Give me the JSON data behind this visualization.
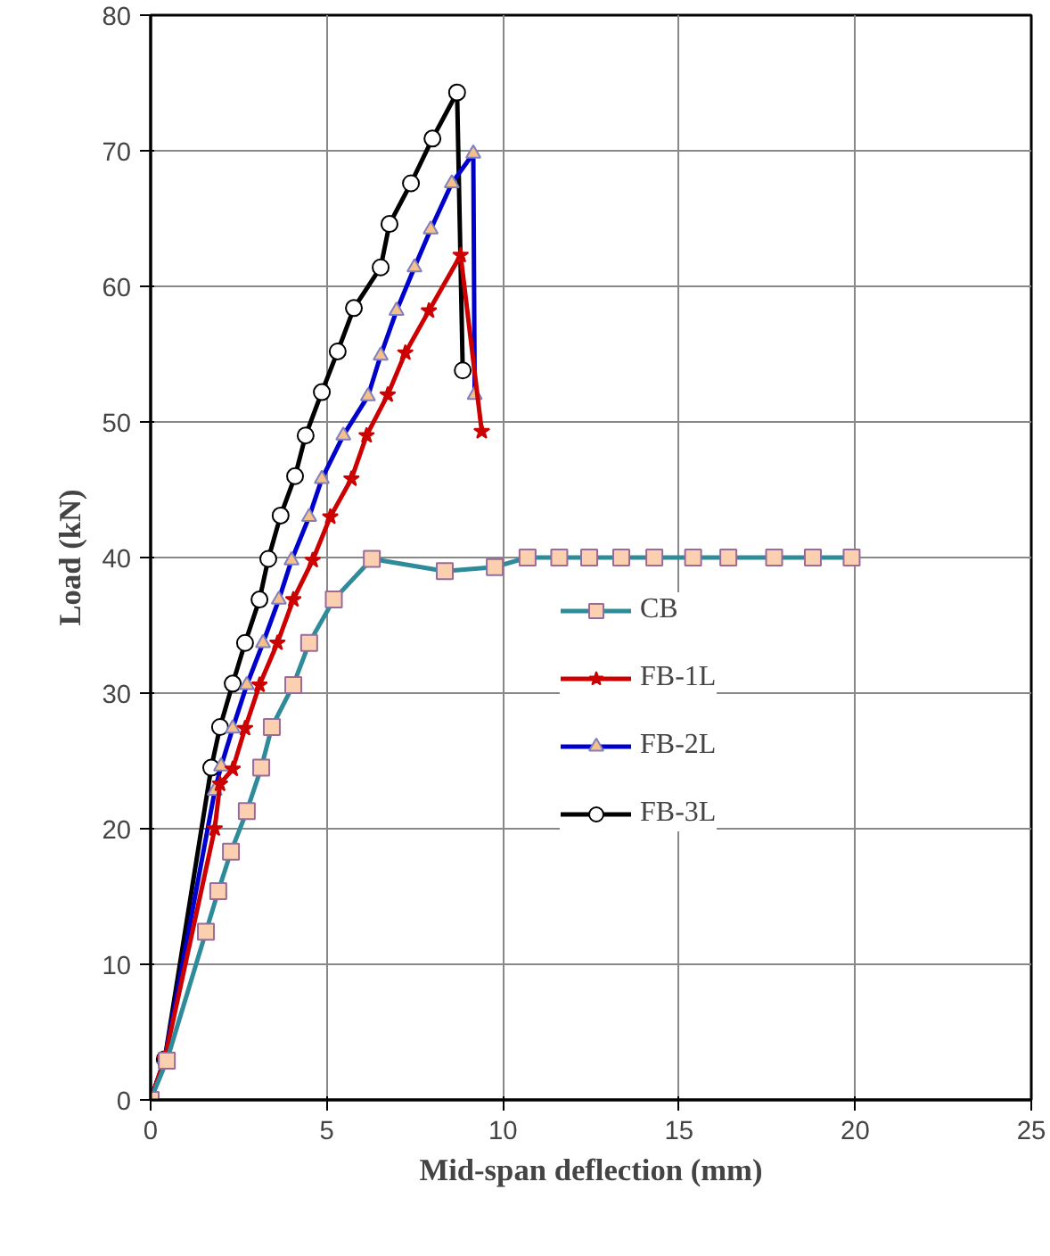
{
  "chart_data": {
    "type": "line",
    "xlabel": "Mid-span deflection (mm)",
    "ylabel": "Load (kN)",
    "xlim": [
      0,
      25
    ],
    "ylim": [
      0,
      80
    ],
    "xticks": [
      0,
      5,
      10,
      15,
      20,
      25
    ],
    "yticks": [
      0,
      10,
      20,
      30,
      40,
      50,
      60,
      70,
      80
    ],
    "grid": true,
    "legend": "right",
    "line_style": "solid",
    "series": [
      {
        "name": "CB",
        "color": "#2e8b9a",
        "marker": "square",
        "x": [
          0,
          0.46,
          1.57,
          1.92,
          2.28,
          2.73,
          3.14,
          3.44,
          4.05,
          4.5,
          5.2,
          6.28,
          8.35,
          9.77,
          10.7,
          11.6,
          12.45,
          13.36,
          14.3,
          15.4,
          16.4,
          17.7,
          18.8,
          19.9
        ],
        "values": [
          0,
          2.9,
          12.4,
          15.4,
          18.3,
          21.3,
          24.5,
          27.5,
          30.6,
          33.7,
          36.9,
          39.9,
          39.0,
          39.3,
          40.0,
          40.0,
          40.0,
          40.0,
          40.0,
          40.0,
          40.0,
          40.0,
          40.0,
          40.0
        ]
      },
      {
        "name": "FB-1L",
        "color": "#cc0000",
        "marker": "star",
        "x": [
          0,
          0.4,
          1.82,
          1.97,
          2.33,
          2.68,
          3.09,
          3.6,
          4.05,
          4.6,
          5.1,
          5.7,
          6.13,
          6.73,
          7.23,
          7.9,
          8.8,
          9.4
        ],
        "values": [
          0,
          3,
          20.0,
          23.3,
          24.4,
          27.4,
          30.6,
          33.7,
          36.9,
          39.8,
          43.0,
          45.8,
          49.0,
          52.0,
          55.1,
          58.2,
          62.3,
          49.3
        ]
      },
      {
        "name": "FB-2L",
        "color": "#0000cc",
        "marker": "triangle",
        "x": [
          0,
          0.4,
          1.82,
          2.0,
          2.33,
          2.73,
          3.19,
          3.64,
          4.0,
          4.5,
          4.86,
          5.47,
          6.17,
          6.53,
          6.98,
          7.49,
          7.95,
          8.55,
          9.16,
          9.2
        ],
        "values": [
          0,
          3,
          22.8,
          24.6,
          27.4,
          30.6,
          33.7,
          36.9,
          39.8,
          43.0,
          45.8,
          49.0,
          51.9,
          54.9,
          58.2,
          61.4,
          64.2,
          67.6,
          69.8,
          52.0
        ]
      },
      {
        "name": "FB-3L",
        "color": "#000000",
        "marker": "circle",
        "x": [
          0,
          0.4,
          1.72,
          1.97,
          2.33,
          2.68,
          3.09,
          3.34,
          3.69,
          4.1,
          4.4,
          4.86,
          5.31,
          5.77,
          6.53,
          6.78,
          7.39,
          8.0,
          8.7,
          8.86
        ],
        "values": [
          0,
          3,
          24.5,
          27.5,
          30.7,
          33.7,
          36.9,
          39.9,
          43.1,
          46.0,
          49.0,
          52.2,
          55.2,
          58.4,
          61.4,
          64.6,
          67.6,
          70.9,
          74.3,
          53.8
        ]
      }
    ]
  }
}
